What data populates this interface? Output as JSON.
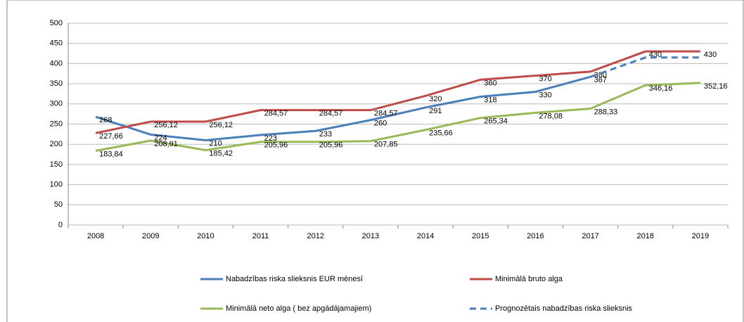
{
  "chart_data": {
    "type": "line",
    "categories": [
      "2008",
      "2009",
      "2010",
      "2011",
      "2012",
      "2013",
      "2014",
      "2015",
      "2016",
      "2017",
      "2018",
      "2019"
    ],
    "series": [
      {
        "name": "Nabadzības riska slieksnis  EUR mēnesī",
        "color": "#4a7ebb",
        "values": [
          268,
          224,
          210,
          223,
          233,
          260,
          291,
          318,
          330,
          367,
          null,
          null
        ]
      },
      {
        "name": "Minimālā  bruto alga",
        "color": "#be4b48",
        "values": [
          227.66,
          256.12,
          256.12,
          284.57,
          284.57,
          284.57,
          320,
          360,
          370,
          380,
          430,
          430
        ],
        "value_labels": [
          "227,66",
          "256,12",
          "256,12",
          "284,57",
          "284,57",
          "284,57",
          "320",
          "360",
          "370",
          "380",
          "430",
          "430"
        ]
      },
      {
        "name": "Minimālā neto alga ( bez apgādājamajiem)",
        "color": "#98b954",
        "values": [
          183.84,
          208.91,
          185.42,
          205.96,
          205.96,
          207.85,
          235.66,
          265.34,
          278.08,
          288.33,
          346.16,
          352.16
        ],
        "value_labels": [
          "183,84",
          "208,91",
          "185,42",
          "205,96",
          "205,96",
          "207,85",
          "235,66",
          "265,34",
          "278,08",
          "288,33",
          "346,16",
          "352,16"
        ]
      },
      {
        "name": "Prognozētais nabadzības riska slieksnis",
        "color": "#4a7ebb",
        "dashed": true,
        "values": [
          null,
          null,
          null,
          null,
          null,
          null,
          null,
          null,
          null,
          367,
          415,
          415
        ]
      }
    ],
    "ylim": [
      0,
      500
    ],
    "yticks": [
      0,
      50,
      100,
      150,
      200,
      250,
      300,
      350,
      400,
      450,
      500
    ],
    "grid": true
  }
}
